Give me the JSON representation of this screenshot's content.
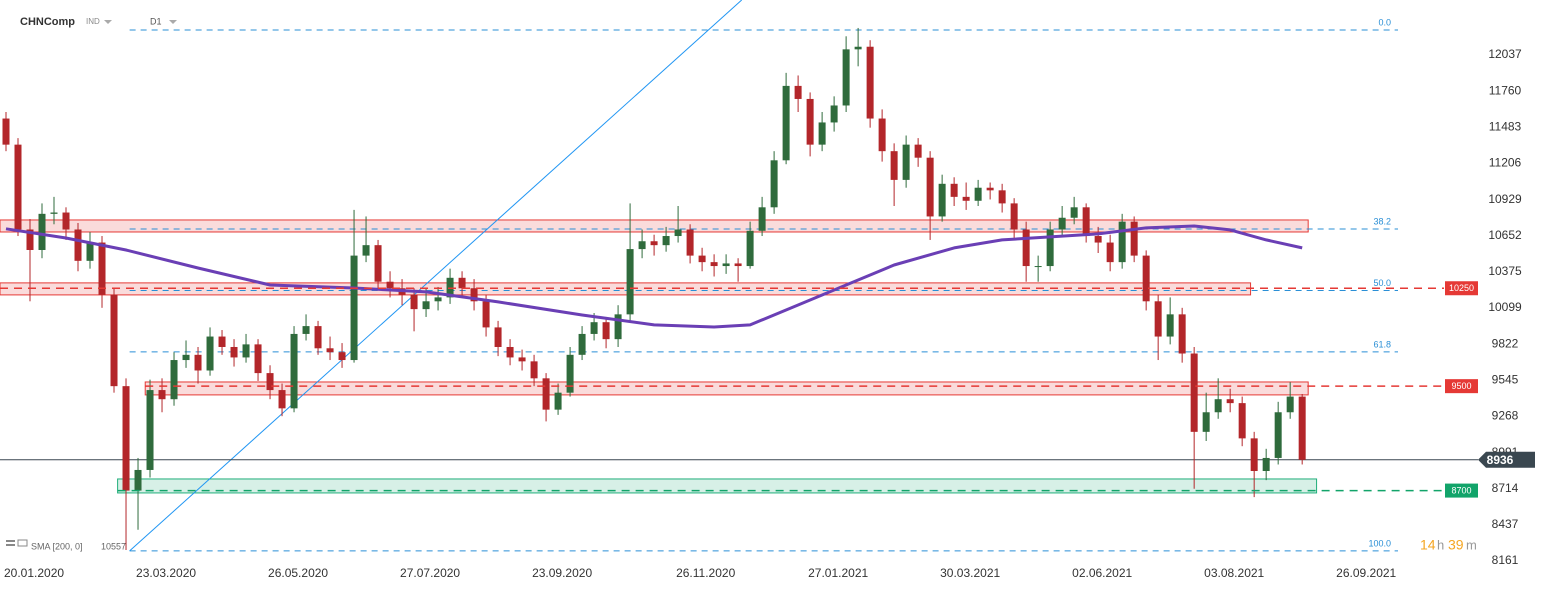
{
  "chart_data": {
    "type": "candlestick",
    "symbol": "CHNComp",
    "instrument_type": "IND",
    "timeframe": "D1",
    "indicator_label": "SMA [200, 0]",
    "indicator_value": 10557,
    "timer": {
      "hours": 14,
      "hours_unit": "h",
      "minutes": 39,
      "minutes_unit": "m"
    },
    "up_color": "#2f6b3c",
    "down_color": "#b3262a",
    "xlim": [
      -0.5,
      122.4
    ],
    "ylim": [
      8107,
      12458
    ],
    "yticks": [
      12037,
      11760,
      11483,
      11206,
      10929,
      10652,
      10375,
      10099,
      9822,
      9545,
      9268,
      8991,
      8714,
      8437,
      8161
    ],
    "xticks": [
      {
        "value": 0,
        "label": "20.01.2020"
      },
      {
        "value": 11,
        "label": "23.03.2020"
      },
      {
        "value": 22,
        "label": "26.05.2020"
      },
      {
        "value": 33,
        "label": "27.07.2020"
      },
      {
        "value": 44,
        "label": "23.09.2020"
      },
      {
        "value": 56,
        "label": "26.11.2020"
      },
      {
        "value": 67,
        "label": "27.01.2021"
      },
      {
        "value": 78,
        "label": "30.03.2021"
      },
      {
        "value": 89,
        "label": "02.06.2021"
      },
      {
        "value": 100,
        "label": "03.08.2021"
      },
      {
        "value": 111,
        "label": "26.09.2021"
      }
    ],
    "ohlc": [
      [
        11550,
        11600,
        11300,
        11350
      ],
      [
        11350,
        11400,
        10650,
        10700
      ],
      [
        10700,
        10780,
        10150,
        10543
      ],
      [
        10543,
        10900,
        10480,
        10820
      ],
      [
        10820,
        10950,
        10740,
        10830
      ],
      [
        10830,
        10870,
        10620,
        10700
      ],
      [
        10700,
        10750,
        10380,
        10460
      ],
      [
        10460,
        10680,
        10400,
        10600
      ],
      [
        10600,
        10650,
        10100,
        10200
      ],
      [
        10200,
        10250,
        9450,
        9500
      ],
      [
        9500,
        9560,
        8245,
        8700
      ],
      [
        8700,
        8950,
        8400,
        8858
      ],
      [
        8858,
        9550,
        8800,
        9470
      ],
      [
        9470,
        9560,
        9300,
        9400
      ],
      [
        9400,
        9760,
        9350,
        9700
      ],
      [
        9700,
        9850,
        9640,
        9740
      ],
      [
        9740,
        9800,
        9520,
        9620
      ],
      [
        9620,
        9950,
        9580,
        9880
      ],
      [
        9880,
        9930,
        9740,
        9800
      ],
      [
        9800,
        9860,
        9650,
        9720
      ],
      [
        9720,
        9900,
        9680,
        9820
      ],
      [
        9820,
        9860,
        9540,
        9600
      ],
      [
        9600,
        9660,
        9400,
        9470
      ],
      [
        9470,
        9520,
        9270,
        9330
      ],
      [
        9330,
        9960,
        9300,
        9900
      ],
      [
        9900,
        10050,
        9850,
        9960
      ],
      [
        9960,
        10000,
        9740,
        9790
      ],
      [
        9790,
        9880,
        9700,
        9760
      ],
      [
        9760,
        9830,
        9640,
        9700
      ],
      [
        9700,
        10850,
        9680,
        10500
      ],
      [
        10500,
        10800,
        10450,
        10580
      ],
      [
        10580,
        10620,
        10250,
        10300
      ],
      [
        10300,
        10380,
        10180,
        10250
      ],
      [
        10250,
        10320,
        10120,
        10200
      ],
      [
        10200,
        10250,
        9920,
        10090
      ],
      [
        10090,
        10250,
        10030,
        10150
      ],
      [
        10150,
        10260,
        10080,
        10180
      ],
      [
        10180,
        10400,
        10130,
        10330
      ],
      [
        10330,
        10380,
        10180,
        10250
      ],
      [
        10250,
        10320,
        10080,
        10150
      ],
      [
        10150,
        10200,
        9880,
        9950
      ],
      [
        9950,
        10000,
        9730,
        9800
      ],
      [
        9800,
        9860,
        9660,
        9720
      ],
      [
        9720,
        9780,
        9620,
        9690
      ],
      [
        9690,
        9740,
        9500,
        9560
      ],
      [
        9560,
        9600,
        9230,
        9320
      ],
      [
        9320,
        9520,
        9280,
        9450
      ],
      [
        9450,
        9800,
        9420,
        9740
      ],
      [
        9740,
        9960,
        9700,
        9900
      ],
      [
        9900,
        10060,
        9850,
        9990
      ],
      [
        9990,
        10030,
        9790,
        9860
      ],
      [
        9860,
        10120,
        9800,
        10050
      ],
      [
        10050,
        10900,
        10000,
        10550
      ],
      [
        10550,
        10700,
        10480,
        10610
      ],
      [
        10610,
        10660,
        10500,
        10580
      ],
      [
        10580,
        10720,
        10530,
        10650
      ],
      [
        10650,
        10880,
        10600,
        10700
      ],
      [
        10700,
        10740,
        10440,
        10500
      ],
      [
        10500,
        10560,
        10380,
        10450
      ],
      [
        10450,
        10510,
        10340,
        10420
      ],
      [
        10420,
        10510,
        10360,
        10440
      ],
      [
        10440,
        10480,
        10300,
        10420
      ],
      [
        10420,
        10760,
        10400,
        10690
      ],
      [
        10690,
        10950,
        10650,
        10870
      ],
      [
        10870,
        11300,
        10820,
        11230
      ],
      [
        11230,
        11900,
        11200,
        11800
      ],
      [
        11800,
        11880,
        11600,
        11700
      ],
      [
        11700,
        11750,
        11260,
        11350
      ],
      [
        11350,
        11600,
        11300,
        11520
      ],
      [
        11520,
        11720,
        11450,
        11650
      ],
      [
        11650,
        12180,
        11600,
        12080
      ],
      [
        12080,
        12244,
        11950,
        12100
      ],
      [
        12100,
        12150,
        11480,
        11550
      ],
      [
        11550,
        11620,
        11220,
        11300
      ],
      [
        11300,
        11360,
        10880,
        11080
      ],
      [
        11080,
        11420,
        11020,
        11350
      ],
      [
        11350,
        11400,
        11180,
        11250
      ],
      [
        11250,
        11300,
        10620,
        10800
      ],
      [
        10800,
        11120,
        10760,
        11050
      ],
      [
        11050,
        11100,
        10880,
        10950
      ],
      [
        10950,
        11060,
        10850,
        10920
      ],
      [
        10920,
        11080,
        10880,
        11020
      ],
      [
        11020,
        11060,
        10930,
        11000
      ],
      [
        11000,
        11050,
        10830,
        10900
      ],
      [
        10900,
        10940,
        10620,
        10700
      ],
      [
        10700,
        10760,
        10300,
        10420
      ],
      [
        10420,
        10500,
        10300,
        10420
      ],
      [
        10420,
        10760,
        10380,
        10700
      ],
      [
        10700,
        10880,
        10650,
        10790
      ],
      [
        10790,
        10950,
        10740,
        10870
      ],
      [
        10870,
        10900,
        10600,
        10650
      ],
      [
        10650,
        10720,
        10520,
        10600
      ],
      [
        10600,
        10660,
        10380,
        10450
      ],
      [
        10450,
        10820,
        10400,
        10760
      ],
      [
        10760,
        10800,
        10450,
        10500
      ],
      [
        10500,
        10540,
        10080,
        10150
      ],
      [
        10150,
        10200,
        9700,
        9880
      ],
      [
        9880,
        10180,
        9820,
        10050
      ],
      [
        10050,
        10100,
        9680,
        9750
      ],
      [
        9750,
        9800,
        8714,
        9150
      ],
      [
        9150,
        9450,
        9080,
        9300
      ],
      [
        9300,
        9560,
        9250,
        9400
      ],
      [
        9400,
        9480,
        9300,
        9370
      ],
      [
        9370,
        9420,
        9040,
        9100
      ],
      [
        9100,
        9150,
        8650,
        8850
      ],
      [
        8850,
        9020,
        8780,
        8950
      ],
      [
        8950,
        9380,
        8900,
        9300
      ],
      [
        9300,
        9530,
        9250,
        9420
      ],
      [
        9420,
        9440,
        8900,
        8936
      ]
    ],
    "sma": {
      "color": "#6a3fb5",
      "x": [
        0,
        5,
        10,
        16,
        22,
        29,
        35,
        41,
        48,
        54,
        59,
        62,
        66,
        70,
        74,
        79,
        83,
        87,
        91,
        95,
        99,
        102,
        105,
        108
      ],
      "values": [
        10705,
        10635,
        10543,
        10405,
        10275,
        10252,
        10222,
        10145,
        10045,
        9969,
        9953,
        9969,
        10122,
        10275,
        10428,
        10559,
        10620,
        10643,
        10666,
        10712,
        10727,
        10697,
        10620,
        10559
      ]
    },
    "trendline": {
      "color": "#2196f3",
      "x": [
        10.3,
        61.3
      ],
      "values": [
        8238,
        12458
      ]
    },
    "fib": {
      "color": "#2a8fd6",
      "start": 10.3,
      "high": 12228,
      "low": 8238,
      "levels": [
        {
          "value": 0,
          "label": "0.0"
        },
        38.2,
        {
          "value": 50,
          "label": "50.0"
        },
        61.8,
        {
          "value": 100,
          "label": "100.0"
        }
      ]
    },
    "zones": [
      {
        "low": 10681,
        "high": 10773,
        "start": -0.5,
        "end": 108.5,
        "color": "#e53935"
      },
      {
        "low": 10199,
        "high": 10291,
        "start": -0.5,
        "end": 103.7,
        "color": "#e53935"
      },
      {
        "low": 9433,
        "high": 9532,
        "start": 11.6,
        "end": 108.5,
        "color": "#e53935"
      },
      {
        "low": 8682,
        "high": 8789,
        "start": 9.3,
        "end": 109.2,
        "color": "#1fae7a"
      }
    ],
    "levels": [
      {
        "value": 10250,
        "start": -0.5,
        "color": "#e53935"
      },
      {
        "value": 9500,
        "start": 11.6,
        "color": "#e53935"
      },
      {
        "value": 8700,
        "start": 9.3,
        "color": "#12a46a"
      }
    ],
    "current_price": 8936
  }
}
